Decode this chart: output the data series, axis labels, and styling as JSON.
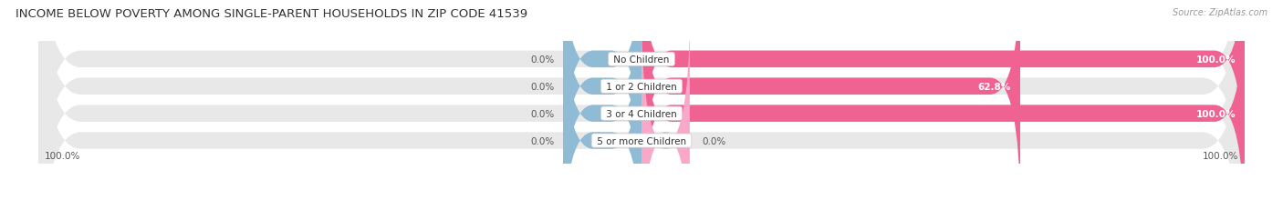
{
  "title": "INCOME BELOW POVERTY AMONG SINGLE-PARENT HOUSEHOLDS IN ZIP CODE 41539",
  "source": "Source: ZipAtlas.com",
  "categories": [
    "No Children",
    "1 or 2 Children",
    "3 or 4 Children",
    "5 or more Children"
  ],
  "single_father": [
    0.0,
    0.0,
    0.0,
    0.0
  ],
  "single_mother": [
    100.0,
    62.8,
    100.0,
    0.0
  ],
  "father_color": "#8fbcd4",
  "mother_color": "#f06292",
  "mother_color_light": "#f9a8c9",
  "bar_bg_color": "#e8e8e8",
  "title_fontsize": 9.5,
  "label_fontsize": 7.5,
  "source_fontsize": 7,
  "figsize": [
    14.06,
    2.32
  ],
  "dpi": 100,
  "bottom_left_label": "100.0%",
  "bottom_right_label": "100.0%"
}
